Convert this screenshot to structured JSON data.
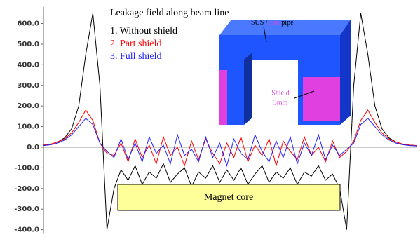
{
  "chart_data": {
    "type": "line",
    "title": "Leakage field along beam line",
    "categories": [
      null,
      null,
      null,
      null,
      null,
      null,
      null,
      null,
      null,
      null,
      null,
      null,
      null,
      null,
      null,
      null,
      null,
      null,
      null,
      null,
      null,
      null,
      null,
      null,
      null,
      null,
      null,
      null,
      null,
      null,
      null,
      null,
      null,
      null,
      null,
      null,
      null,
      null,
      null,
      null,
      null,
      null,
      null,
      null,
      null,
      null,
      null,
      null,
      null,
      null,
      null,
      null,
      null,
      null
    ],
    "series": [
      {
        "name": "1. Without shield",
        "color": "#000000",
        "values": [
          10,
          15,
          25,
          45,
          90,
          200,
          450,
          650,
          300,
          -400,
          -200,
          -110,
          -160,
          -90,
          -180,
          -120,
          -150,
          -80,
          -170,
          -130,
          -100,
          -190,
          -120,
          -150,
          -90,
          -170,
          -110,
          -160,
          -100,
          -180,
          -130,
          -90,
          -170,
          -120,
          -150,
          -100,
          -180,
          -120,
          -140,
          -90,
          -160,
          -130,
          -200,
          -400,
          300,
          650,
          450,
          200,
          90,
          45,
          25,
          15,
          10,
          8
        ]
      },
      {
        "name": "2. Part shield",
        "color": "#ff0000",
        "values": [
          10,
          15,
          25,
          40,
          70,
          120,
          180,
          130,
          20,
          -30,
          -40,
          20,
          -70,
          40,
          -50,
          10,
          -80,
          50,
          -40,
          0,
          -90,
          30,
          -60,
          40,
          -30,
          -80,
          20,
          -50,
          50,
          -70,
          10,
          -40,
          40,
          -90,
          30,
          -20,
          -60,
          50,
          -40,
          0,
          -70,
          30,
          -50,
          -20,
          30,
          130,
          180,
          120,
          70,
          40,
          25,
          15,
          10,
          8
        ]
      },
      {
        "name": "3. Full shield",
        "color": "#2222ff",
        "values": [
          8,
          12,
          20,
          35,
          60,
          100,
          140,
          110,
          20,
          -20,
          -50,
          40,
          -60,
          20,
          -70,
          50,
          -30,
          10,
          -80,
          60,
          -40,
          -10,
          -70,
          50,
          -50,
          20,
          -90,
          40,
          -30,
          -60,
          60,
          -20,
          -70,
          30,
          -50,
          50,
          -80,
          20,
          -40,
          60,
          -60,
          10,
          -40,
          -10,
          20,
          110,
          140,
          100,
          60,
          35,
          20,
          12,
          8,
          6
        ]
      }
    ],
    "ylim": [
      -420,
      680
    ],
    "yticks": [
      {
        "value": 600,
        "label": "600.0"
      },
      {
        "value": 500,
        "label": "500.0"
      },
      {
        "value": 400,
        "label": "400.0"
      },
      {
        "value": 300,
        "label": "300.0"
      },
      {
        "value": 200,
        "label": "200.0"
      },
      {
        "value": 100,
        "label": "100.0"
      },
      {
        "value": 0,
        "label": "0.0"
      },
      {
        "value": -100,
        "label": "-100.0"
      },
      {
        "value": -200,
        "label": "-200.0"
      },
      {
        "value": -300,
        "label": "-300.0"
      },
      {
        "value": -400,
        "label": "-400.0"
      }
    ],
    "grid": false,
    "annotations": [
      "SUS /",
      "Iron",
      "pipe",
      "Shield",
      "3mm",
      "Magnet core"
    ]
  }
}
